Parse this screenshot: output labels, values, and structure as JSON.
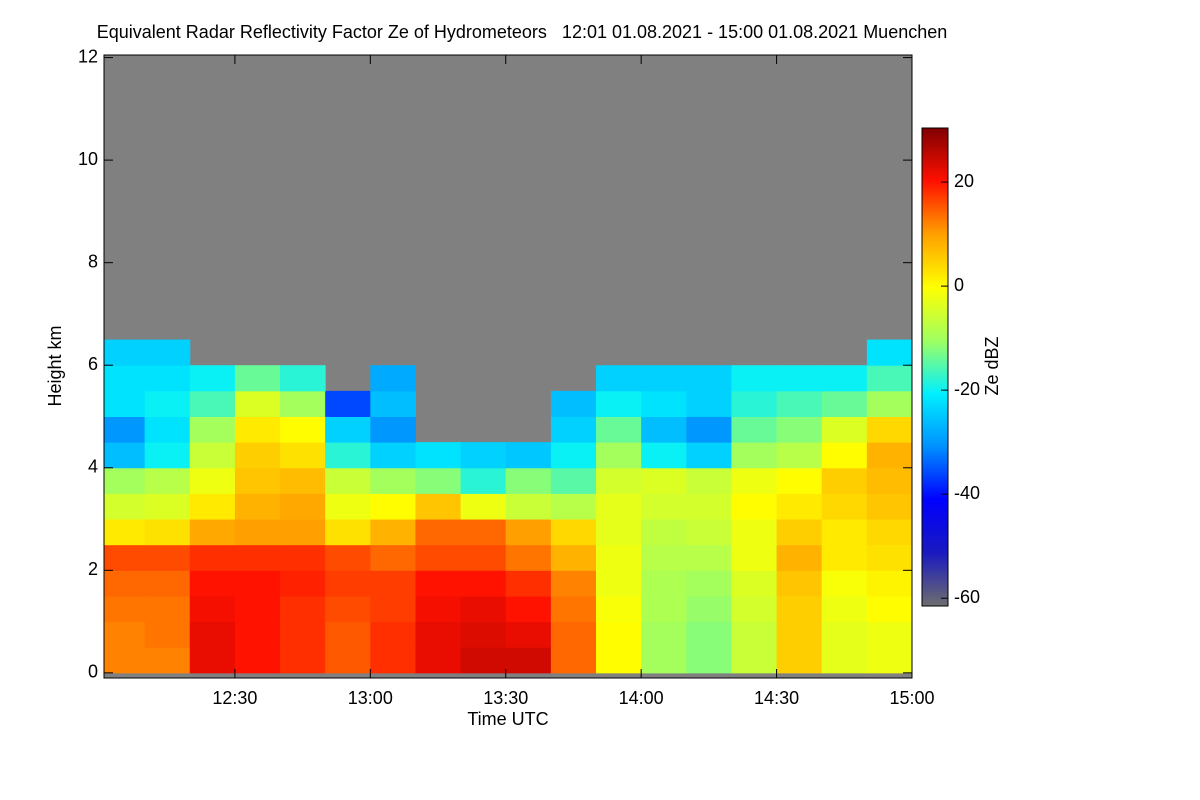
{
  "chart_data": {
    "type": "heatmap",
    "title": "Equivalent Radar Reflectivity Factor Ze of Hydrometeors   12:01 01.08.2021 - 15:00 01.08.2021 Muenchen",
    "x_label": "Time UTC",
    "y_label": "Height km",
    "colorbar_label": "Ze dBZ",
    "x_edges": [
      12.0167,
      12.1667,
      12.3333,
      12.5,
      12.6667,
      12.8333,
      13,
      13.1667,
      13.3333,
      13.5,
      13.6667,
      13.8333,
      14,
      14.1667,
      14.3333,
      14.5,
      14.6667,
      14.8333,
      15
    ],
    "y_edges": [
      0,
      0.5,
      1,
      1.5,
      2,
      2.5,
      3,
      3.5,
      4,
      4.5,
      5,
      5.5,
      6,
      6.5
    ],
    "z": [
      [
        12,
        12,
        22,
        20,
        18,
        15,
        18,
        22,
        24,
        24,
        14,
        0,
        -10,
        -12,
        -6,
        5,
        -3,
        -2
      ],
      [
        12,
        13,
        22,
        20,
        18,
        15,
        18,
        22,
        23,
        22,
        14,
        0,
        -10,
        -12,
        -6,
        5,
        -3,
        -2
      ],
      [
        13,
        13,
        21,
        20,
        18,
        16,
        17,
        21,
        22,
        20,
        13,
        -1,
        -9,
        -11,
        -5,
        5,
        -2,
        0
      ],
      [
        14,
        14,
        20,
        20,
        19,
        17,
        17,
        20,
        20,
        18,
        12,
        -2,
        -9,
        -10,
        -4,
        6,
        -1,
        1
      ],
      [
        16,
        16,
        18,
        18,
        18,
        16,
        14,
        16,
        16,
        13,
        8,
        -2,
        -8,
        -8,
        -2,
        8,
        2,
        3
      ],
      [
        2,
        3,
        9,
        10,
        10,
        3,
        8,
        14,
        14,
        10,
        4,
        -3,
        -7,
        -6,
        -2,
        5,
        2,
        4
      ],
      [
        -5,
        -4,
        2,
        8,
        9,
        -2,
        0,
        6,
        -2,
        -6,
        -8,
        -3,
        -5,
        -5,
        0,
        2,
        4,
        6
      ],
      [
        -10,
        -8,
        -2,
        6,
        7,
        -6,
        -10,
        -12,
        -18,
        -12,
        -15,
        -5,
        -4,
        -6,
        -2,
        0,
        5,
        7
      ],
      [
        -26,
        -20,
        -6,
        5,
        3,
        -18,
        -24,
        -22,
        -24,
        -25,
        -20,
        -10,
        -20,
        -24,
        -10,
        -8,
        0,
        8
      ],
      [
        -30,
        -22,
        -10,
        2,
        0,
        -24,
        -30,
        null,
        null,
        null,
        -24,
        -14,
        -26,
        -30,
        -14,
        -12,
        -4,
        4
      ],
      [
        -22,
        -20,
        -16,
        -4,
        -10,
        -36,
        -26,
        null,
        null,
        null,
        -26,
        -20,
        -22,
        -24,
        -18,
        -16,
        -14,
        -10
      ],
      [
        -22,
        -22,
        -20,
        -14,
        -18,
        null,
        -28,
        null,
        null,
        null,
        null,
        -24,
        -24,
        -24,
        -20,
        -20,
        -20,
        -16
      ],
      [
        -24,
        -24,
        null,
        null,
        null,
        null,
        null,
        null,
        null,
        null,
        null,
        null,
        null,
        null,
        null,
        null,
        null,
        -22
      ]
    ],
    "xlim": [
      12.0167,
      15
    ],
    "xticks": [
      {
        "value": 12.5,
        "label": "12:30"
      },
      {
        "value": 13,
        "label": "13:00"
      },
      {
        "value": 13.5,
        "label": "13:30"
      },
      {
        "value": 14,
        "label": "14:00"
      },
      {
        "value": 14.5,
        "label": "14:30"
      },
      {
        "value": 15,
        "label": "15:00"
      }
    ],
    "ylim": [
      -0.1,
      12.05
    ],
    "yticks": [
      0,
      2,
      4,
      6,
      8,
      10,
      12
    ],
    "clim": [
      -61.5,
      30.4
    ],
    "cticks": [
      -60,
      -40,
      -20,
      0,
      20
    ],
    "colormap": [
      "#6e6e6e",
      "#1a1ac0",
      "#0000ff",
      "#0090ff",
      "#00f0ff",
      "#a0ff60",
      "#ffff00",
      "#ffa000",
      "#ff1000",
      "#800000"
    ],
    "missing_color": "#808080"
  }
}
